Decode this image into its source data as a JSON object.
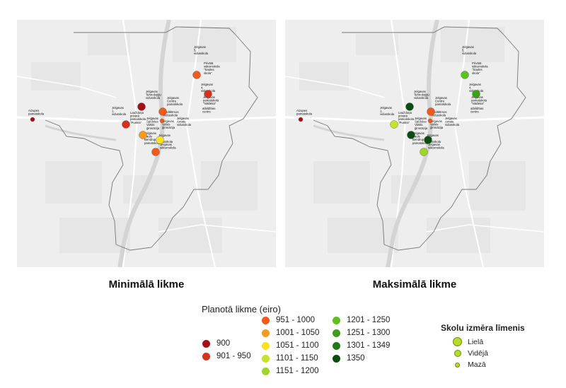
{
  "captions": {
    "left": "Minimālā likme",
    "right": "Maksimālā likme"
  },
  "legend": {
    "title": "Planotā likme (eiro)",
    "classes": [
      {
        "label": "900",
        "color": "#a50f15"
      },
      {
        "label": "901 - 950",
        "color": "#d7301f"
      },
      {
        "label": "951 - 1000",
        "color": "#f05a1a"
      },
      {
        "label": "1001 - 1050",
        "color": "#f79a1e"
      },
      {
        "label": "1051 - 1100",
        "color": "#f9e21f"
      },
      {
        "label": "1101 - 1150",
        "color": "#c8e22a"
      },
      {
        "label": "1151 - 1200",
        "color": "#9fd42a"
      },
      {
        "label": "1201 - 1250",
        "color": "#5ec21e"
      },
      {
        "label": "1251 - 1300",
        "color": "#3e9e1a"
      },
      {
        "label": "1301 - 1349",
        "color": "#207a1a"
      },
      {
        "label": "1350",
        "color": "#0b4d11"
      }
    ]
  },
  "size_legend": {
    "title": "Skolu izmēra līmenis",
    "items": [
      {
        "label": "Lielā"
      },
      {
        "label": "Vidējā"
      },
      {
        "label": "Mazā"
      }
    ]
  },
  "schools": [
    {
      "lines": [
        "Jelgavas",
        "5.",
        "vidusskola"
      ]
    },
    {
      "lines": [
        "Privātā",
        "sākumskola",
        "\"Saules",
        "skola\""
      ]
    },
    {
      "lines": [
        "Jelgavas",
        "4.",
        "vidusskola"
      ]
    },
    {
      "lines": [
        "Jelgavas",
        "pamatskola",
        "\"Valdeka\""
      ]
    },
    {
      "lines": [
        "Jelgavas",
        "Tehnoloģiju",
        "vidusskola"
      ]
    },
    {
      "lines": [
        "Jelgavas",
        "Centra",
        "pamatskola"
      ]
    },
    {
      "lines": [
        "Jelgavas",
        "1.",
        "vidusskola"
      ]
    },
    {
      "lines": [
        "Lauždoņa",
        "privātā",
        "pamatskola",
        "\"Punkts\""
      ]
    },
    {
      "lines": [
        "Pedālēmos",
        "vidusskola"
      ]
    },
    {
      "lines": [
        "Jelgavas",
        "Spīdolas",
        "Valsts",
        "ģimnāzija"
      ]
    },
    {
      "lines": [
        "Jelgavas",
        "Valsts",
        "ģimnāzija"
      ]
    },
    {
      "lines": [
        "Jelgavas",
        "Amatu",
        "vidusskola"
      ]
    },
    {
      "lines": [
        "atbildības",
        "centrs"
      ]
    },
    {
      "lines": [
        "Jelgavas",
        "Pauls",
        "Bendrups",
        "pamatskola"
      ]
    },
    {
      "lines": [
        "Jelgavas",
        "6.",
        "vidusskola"
      ]
    },
    {
      "lines": [
        "Jelgavas",
        "sākumskola"
      ]
    },
    {
      "lines": [
        "Aizupes",
        "pamatskola"
      ]
    }
  ],
  "map_min": {
    "points": [
      {
        "cls": 2,
        "size": "large"
      },
      {
        "cls": 1,
        "size": "large"
      },
      {
        "cls": 0,
        "size": "large"
      },
      {
        "cls": 2,
        "size": "large"
      },
      {
        "cls": 1,
        "size": "large"
      },
      {
        "cls": 3,
        "size": "large"
      },
      {
        "cls": 4,
        "size": "large"
      },
      {
        "cls": 2,
        "size": "large"
      },
      {
        "cls": 2,
        "size": "small"
      },
      {
        "cls": 0,
        "size": "small"
      }
    ]
  },
  "map_max": {
    "points": [
      {
        "cls": 7,
        "size": "large"
      },
      {
        "cls": 8,
        "size": "large"
      },
      {
        "cls": 10,
        "size": "large"
      },
      {
        "cls": 2,
        "size": "large"
      },
      {
        "cls": 5,
        "size": "large"
      },
      {
        "cls": 10,
        "size": "large"
      },
      {
        "cls": 10,
        "size": "large"
      },
      {
        "cls": 6,
        "size": "large"
      },
      {
        "cls": 2,
        "size": "small"
      },
      {
        "cls": 0,
        "size": "small"
      }
    ]
  }
}
